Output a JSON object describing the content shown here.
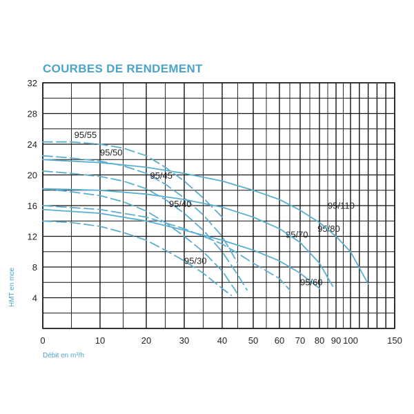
{
  "chart_data": {
    "type": "line",
    "title": "COURBES DE RENDEMENT",
    "xlabel": "Débit en m³/h",
    "ylabel": "HMT en mce",
    "x_ticks": [
      "0",
      "10",
      "20",
      "30",
      "40",
      "50",
      "60",
      "70",
      "80",
      "90",
      "100",
      "150"
    ],
    "x_tick_values": [
      0,
      10,
      20,
      30,
      40,
      50,
      60,
      70,
      80,
      90,
      100,
      150
    ],
    "y_ticks": [
      "4",
      "8",
      "12",
      "16",
      "20",
      "24",
      "28",
      "32"
    ],
    "y_tick_values": [
      4,
      8,
      12,
      16,
      20,
      24,
      28,
      32
    ],
    "ylim": [
      0,
      32
    ],
    "grid": true,
    "colors": {
      "curve": "#5aaed0",
      "grid": "#111111",
      "title": "#4ba3c8"
    },
    "series": [
      {
        "name": "95/55",
        "style": "dashed",
        "label_at": [
          5.5,
          24.8
        ],
        "x": [
          0,
          5,
          10,
          15,
          20,
          25,
          30,
          35,
          40
        ],
        "y": [
          24.3,
          24.3,
          24.0,
          23.5,
          22.5,
          21.0,
          19.2,
          17.0,
          14.5
        ]
      },
      {
        "name": "95/50",
        "style": "dashed",
        "label_at": [
          10,
          22.5
        ],
        "x": [
          0,
          5,
          10,
          15,
          20,
          25,
          30,
          35,
          40,
          45
        ],
        "y": [
          22.5,
          22.2,
          21.8,
          21.2,
          20.2,
          18.8,
          17.0,
          14.8,
          12.0,
          8.5
        ]
      },
      {
        "name": "95/45",
        "style": "dashed",
        "label_at": [
          21,
          19.5
        ],
        "x": [
          0,
          5,
          10,
          15,
          20,
          25,
          30,
          35,
          40,
          45,
          48
        ],
        "y": [
          20.5,
          20.2,
          19.8,
          19.2,
          18.2,
          16.8,
          15.0,
          12.8,
          10.0,
          7.0,
          5.0
        ]
      },
      {
        "name": "95/40",
        "style": "dashed",
        "label_at": [
          26,
          15.8
        ],
        "x": [
          0,
          5,
          10,
          15,
          20,
          25,
          30,
          35,
          40,
          45
        ],
        "y": [
          18.2,
          17.8,
          17.3,
          16.5,
          15.3,
          13.8,
          12.0,
          10.0,
          7.5,
          4.5
        ]
      },
      {
        "name": "95/30",
        "style": "dashed",
        "label_at": [
          30,
          8.4
        ],
        "x": [
          0,
          5,
          10,
          15,
          20,
          25,
          30,
          35,
          40,
          43
        ],
        "y": [
          14.0,
          13.8,
          13.3,
          12.5,
          11.5,
          10.2,
          8.8,
          7.2,
          5.2,
          4.3
        ]
      },
      {
        "name": "95/70",
        "style": "dashed",
        "label_at": [
          63,
          11.8
        ],
        "x": [
          0,
          10,
          20,
          30,
          40,
          45,
          50,
          55,
          60,
          65
        ],
        "y": [
          16.0,
          15.5,
          14.5,
          13.0,
          11.0,
          9.8,
          8.5,
          7.5,
          6.5,
          5.0
        ]
      },
      {
        "name": "95/60",
        "style": "solid",
        "label_at": [
          70,
          5.6
        ],
        "x": [
          0,
          10,
          20,
          30,
          40,
          50,
          60,
          70,
          75,
          80
        ],
        "y": [
          15.5,
          15.0,
          14.0,
          12.8,
          11.5,
          10.2,
          8.8,
          7.2,
          6.2,
          5.2
        ]
      },
      {
        "name": "95/80",
        "style": "solid",
        "label_at": [
          79,
          12.6
        ],
        "x": [
          0,
          10,
          20,
          30,
          40,
          50,
          60,
          70,
          80,
          88
        ],
        "y": [
          18.2,
          18.0,
          17.5,
          16.8,
          15.8,
          14.5,
          13.0,
          11.2,
          8.5,
          5.5
        ]
      },
      {
        "name": "95/110",
        "style": "solid",
        "label_at": [
          85,
          15.6
        ],
        "x": [
          0,
          10,
          20,
          30,
          40,
          50,
          60,
          70,
          80,
          90,
          100,
          120
        ],
        "y": [
          22.0,
          21.6,
          21.0,
          20.2,
          19.2,
          18.0,
          16.8,
          15.4,
          13.8,
          12.0,
          10.0,
          5.8
        ]
      }
    ]
  }
}
